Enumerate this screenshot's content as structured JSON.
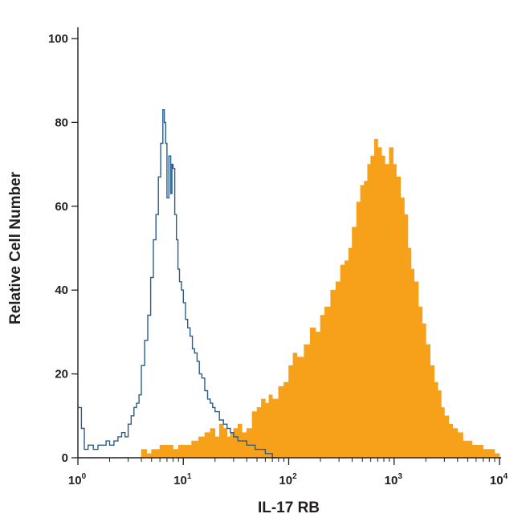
{
  "chart_data": {
    "type": "area",
    "title": "",
    "xlabel": "IL-17 RB",
    "ylabel": "Relative Cell Number",
    "x_scale": "log",
    "xlim": [
      1,
      10000
    ],
    "ylim": [
      0,
      100
    ],
    "y_ticks": [
      0,
      20,
      40,
      60,
      80,
      100
    ],
    "x_ticks": [
      {
        "value": 1,
        "base": "10",
        "exp": "0"
      },
      {
        "value": 10,
        "base": "10",
        "exp": "1"
      },
      {
        "value": 100,
        "base": "10",
        "exp": "2"
      },
      {
        "value": 1000,
        "base": "10",
        "exp": "3"
      },
      {
        "value": 10000,
        "base": "10",
        "exp": "4"
      }
    ],
    "grid": false,
    "legend": "none",
    "series": [
      {
        "style": "outline",
        "color": "#2a5d8a",
        "x": [
          1.0,
          1.08,
          1.15,
          1.25,
          1.4,
          1.55,
          1.7,
          1.85,
          2.0,
          2.2,
          2.4,
          2.6,
          2.8,
          3.0,
          3.2,
          3.4,
          3.6,
          3.8,
          4.0,
          4.3,
          4.6,
          4.9,
          5.2,
          5.5,
          5.8,
          6.1,
          6.4,
          6.6,
          6.8,
          7.0,
          7.3,
          7.6,
          7.8,
          8.0,
          8.3,
          8.6,
          8.9,
          9.2,
          9.6,
          10.0,
          10.5,
          11.0,
          11.6,
          12.2,
          12.8,
          13.5,
          14.2,
          15.0,
          16.0,
          17.0,
          18.0,
          19.0,
          20.0,
          22.0,
          24.0,
          26.0,
          28.0,
          30.0,
          33.0,
          36.0,
          40.0,
          44.0,
          48.0,
          52.0,
          56.0,
          60.0,
          65.0,
          70.0,
          73.0
        ],
        "values": [
          12,
          7,
          2,
          3,
          2,
          3,
          3,
          4,
          3,
          4,
          5,
          6,
          5,
          8,
          10,
          12,
          13,
          15,
          22,
          28,
          34,
          43,
          52,
          58,
          67,
          75,
          83,
          80,
          75,
          62,
          72,
          63,
          70,
          69,
          58,
          52,
          45,
          42,
          40,
          37,
          33,
          31,
          29,
          26,
          25,
          23,
          20,
          19,
          16,
          14,
          13,
          12,
          11,
          9,
          8,
          7,
          6,
          5,
          4,
          4,
          3,
          3,
          2,
          2,
          2,
          1,
          1,
          0,
          0
        ]
      },
      {
        "style": "filled",
        "color": "#f7a11a",
        "x": [
          4.0,
          4.5,
          5.0,
          5.5,
          6.0,
          7.0,
          8.0,
          9.0,
          10.0,
          11.0,
          12.0,
          14.0,
          16.0,
          18.0,
          20.0,
          22.0,
          24.0,
          26.0,
          28.0,
          30.0,
          33.0,
          36.0,
          40.0,
          45.0,
          50.0,
          55.0,
          60.0,
          65.0,
          70.0,
          80.0,
          90.0,
          100.0,
          110.0,
          120.0,
          140.0,
          160.0,
          180.0,
          200.0,
          220.0,
          250.0,
          280.0,
          310.0,
          340.0,
          370.0,
          400.0,
          440.0,
          480.0,
          520.0,
          560.0,
          600.0,
          650.0,
          700.0,
          760.0,
          820.0,
          900.0,
          980.0,
          1050.0,
          1150.0,
          1250.0,
          1350.0,
          1450.0,
          1550.0,
          1700.0,
          1850.0,
          2000.0,
          2200.0,
          2400.0,
          2600.0,
          2800.0,
          3000.0,
          3300.0,
          3600.0,
          4000.0,
          4500.0,
          5000.0,
          5500.0,
          6000.0,
          7000.0,
          8000.0,
          9000.0,
          10000.0
        ],
        "values": [
          2,
          1,
          2,
          2,
          3,
          3,
          2,
          3,
          3,
          3,
          4,
          5,
          6,
          7,
          5,
          8,
          7,
          5,
          6,
          7,
          8,
          6,
          7,
          11,
          12,
          14,
          13,
          15,
          14,
          17,
          18,
          22,
          25,
          24,
          27,
          31,
          30,
          34,
          36,
          40,
          42,
          46,
          47,
          50,
          55,
          61,
          65,
          66,
          70,
          72,
          76,
          74,
          72,
          70,
          74,
          70,
          67,
          62,
          58,
          50,
          45,
          42,
          36,
          32,
          27,
          22,
          18,
          16,
          12,
          10,
          8,
          7,
          6,
          4,
          4,
          3,
          3,
          2,
          2,
          1,
          0
        ]
      }
    ]
  }
}
